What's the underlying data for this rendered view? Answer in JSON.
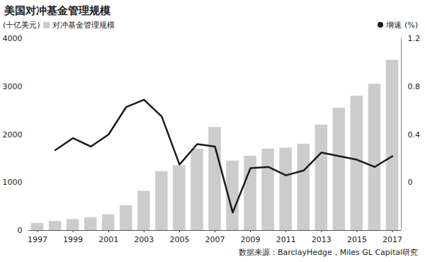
{
  "chart_data": {
    "type": "bar",
    "title": "美国对冲基金管理规模",
    "y_label": "(十亿美元)",
    "source": "数据来源：BarclayHedge，Miles GL Capital研究",
    "categories": [
      "1997",
      null,
      "1999",
      null,
      "2001",
      null,
      "2003",
      null,
      "2005",
      null,
      "2007",
      null,
      "2009",
      null,
      "2011",
      null,
      "2013",
      null,
      "2015",
      null,
      "2017"
    ],
    "series": [
      {
        "name": "对冲基金管理规模",
        "type": "bar",
        "color": "#cccccc",
        "values": [
          150,
          190,
          230,
          270,
          330,
          520,
          820,
          1230,
          1350,
          1700,
          2150,
          1450,
          1550,
          1700,
          1720,
          1800,
          2200,
          2550,
          2800,
          3050,
          3550
        ]
      },
      {
        "name": "增速 (%)",
        "type": "line",
        "axis": "y2",
        "color": "#1a1a1a",
        "values": [
          null,
          0.27,
          0.37,
          0.3,
          0.4,
          0.63,
          0.69,
          0.55,
          0.15,
          0.32,
          0.3,
          -0.25,
          0.12,
          0.13,
          0.06,
          0.1,
          0.25,
          0.22,
          0.19,
          0.13,
          0.22
        ]
      }
    ],
    "ylim": [
      0,
      4000
    ],
    "yticks": [
      0,
      1000,
      2000,
      3000,
      4000
    ],
    "y2lim": [
      -0.4,
      1.2
    ],
    "y2ticks": [
      0,
      0.4,
      0.8,
      1.2
    ],
    "grid": false,
    "legend": "top"
  }
}
